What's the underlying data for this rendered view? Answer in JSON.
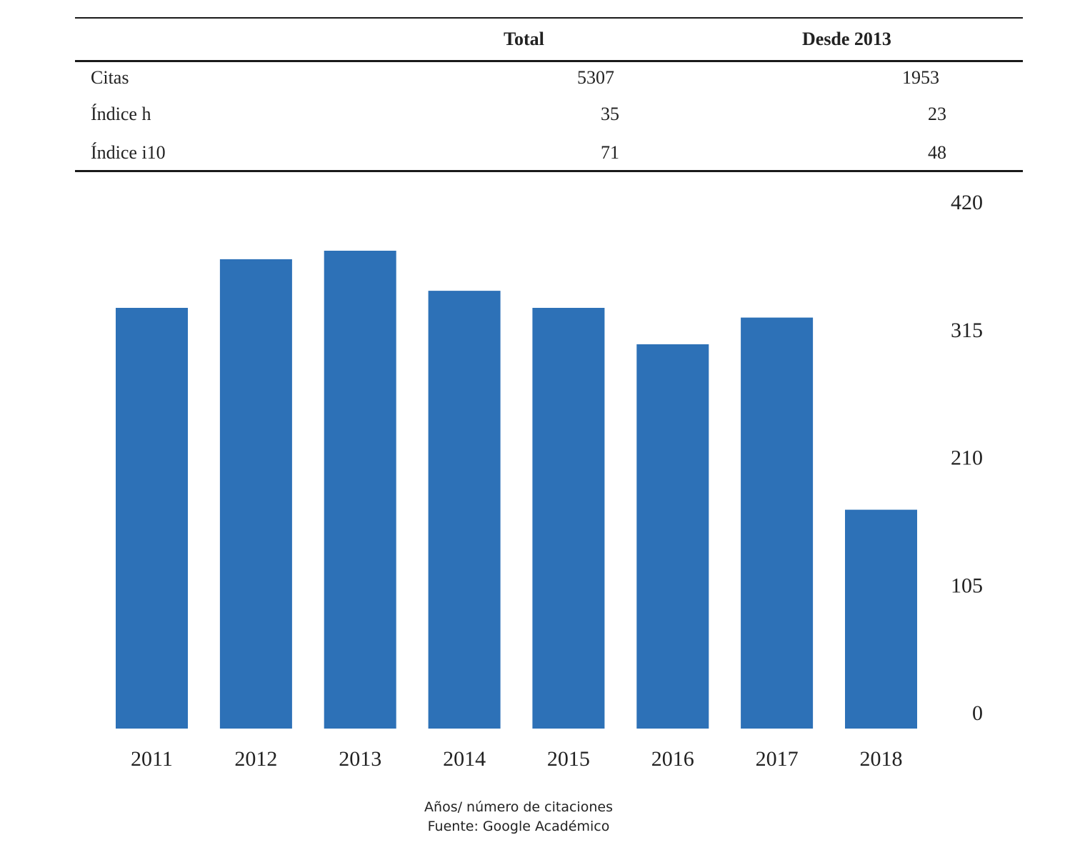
{
  "table": {
    "headers": [
      "",
      "Total",
      "Desde 2013"
    ],
    "rows": [
      {
        "label": "Citas",
        "total": "5307",
        "since": "1953"
      },
      {
        "label": "Índice h",
        "total": "35",
        "since": "23"
      },
      {
        "label": "Índice i10",
        "total": "71",
        "since": "48"
      }
    ]
  },
  "chart_data": {
    "type": "bar",
    "categories": [
      "2011",
      "2012",
      "2013",
      "2014",
      "2015",
      "2016",
      "2017",
      "2018"
    ],
    "values": [
      346,
      386,
      393,
      360,
      346,
      316,
      338,
      180
    ],
    "title": "",
    "xlabel": "",
    "ylabel": "",
    "ylim": [
      0,
      420
    ],
    "yticks": [
      0,
      105,
      210,
      315,
      420
    ],
    "yaxis_position": "right",
    "grid": false,
    "legend": "none",
    "bar_color": "#2d71b7"
  },
  "captions": {
    "axis_note": "Años/ número de citaciones",
    "source": "Fuente: Google Académico"
  }
}
